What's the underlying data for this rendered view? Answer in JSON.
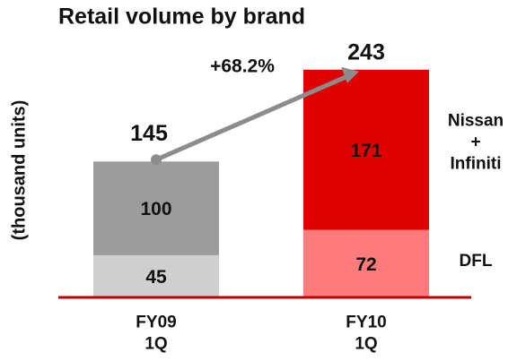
{
  "chart_data": {
    "type": "stacked_bar",
    "title": "Retail volume by brand",
    "y_axis_label": "(thousand units)",
    "categories": [
      "FY09\n1Q",
      "FY10\n1Q"
    ],
    "series": [
      {
        "name": "DFL",
        "colors": [
          "#cfcfcf",
          "#ff7b7b"
        ],
        "values": [
          45,
          72
        ]
      },
      {
        "name": "Nissan\n+\nInfiniti",
        "colors": [
          "#9c9c9c",
          "#e00000"
        ],
        "values": [
          100,
          171
        ]
      }
    ],
    "totals": [
      145,
      243
    ],
    "annotation": "+68.2%",
    "ylim": [
      0,
      260
    ]
  }
}
